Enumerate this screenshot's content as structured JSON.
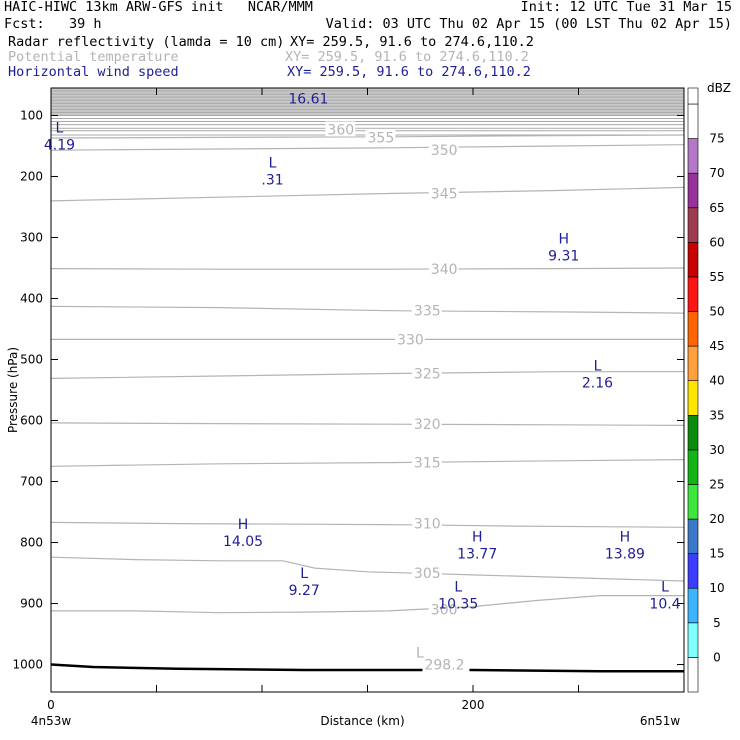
{
  "header": {
    "line1_left": "HAIC-HIWC 13km ARW-GFS init   NCAR/MMM",
    "line1_right": "Init: 12 UTC Tue 31 Mar 15",
    "line2_left": "Fcst:   39 h",
    "line2_right": "Valid: 03 UTC Thu 02 Apr 15 (00 LST Thu 02 Apr 15)",
    "line3_left": "Radar reflectivity (lamda = 10 cm)",
    "line3_right": "XY= 259.5, 91.6 to 274.6,110.2",
    "line4_left": "Potential temperature",
    "line4_right": "XY= 259.5, 91.6 to 274.6,110.2",
    "line5_left": "Horizontal wind speed",
    "line5_right": "XY= 259.5, 91.6 to 274.6,110.2"
  },
  "chart_data": {
    "type": "line",
    "xlabel": "Distance (km)",
    "ylabel": "Pressure (hPa)",
    "xlim": [
      0,
      300
    ],
    "ylim": [
      1045,
      55
    ],
    "x_ticks": [
      0,
      50,
      100,
      150,
      200,
      250,
      300
    ],
    "x_tick_labels": [
      "0",
      "",
      "",
      "",
      "200",
      "",
      ""
    ],
    "y_ticks": [
      100,
      200,
      300,
      400,
      500,
      600,
      700,
      800,
      900,
      1000
    ],
    "x_end_labels": {
      "left": "4n53w",
      "right": "6n51w"
    },
    "surface_pressure": {
      "x": [
        0,
        20,
        60,
        120,
        200,
        260,
        300
      ],
      "y": [
        1000,
        1004,
        1007,
        1009,
        1009,
        1011,
        1011
      ]
    },
    "potential_temperature_isentropes": [
      {
        "value": 298.2,
        "label": "298.2",
        "label_x": 177,
        "label_y": 1000,
        "marker": "L",
        "marker_x": 173,
        "marker_y": 980,
        "x": [],
        "y": []
      },
      {
        "value": 300,
        "label": "300",
        "label_x": 180,
        "label_y": 910,
        "x": [
          0,
          40,
          80,
          120,
          160,
          200,
          230,
          260,
          300
        ],
        "y": [
          912,
          912,
          915,
          914,
          912,
          905,
          895,
          887,
          887
        ]
      },
      {
        "value": 305,
        "label": "305",
        "label_x": 172,
        "label_y": 850,
        "x": [
          0,
          40,
          80,
          110,
          125,
          150,
          200,
          250,
          300
        ],
        "y": [
          824,
          828,
          830,
          830,
          842,
          848,
          853,
          858,
          863
        ]
      },
      {
        "value": 310,
        "label": "310",
        "label_x": 172,
        "label_y": 769,
        "x": [
          0,
          60,
          120,
          170,
          220,
          300
        ],
        "y": [
          767,
          769,
          770,
          771,
          773,
          775
        ]
      },
      {
        "value": 315,
        "label": "315",
        "label_x": 172,
        "label_y": 669,
        "x": [
          0,
          80,
          160,
          240,
          300
        ],
        "y": [
          675,
          671,
          669,
          666,
          664
        ]
      },
      {
        "value": 320,
        "label": "320",
        "label_x": 172,
        "label_y": 606,
        "x": [
          0,
          80,
          160,
          240,
          300
        ],
        "y": [
          604,
          605,
          606,
          607,
          608
        ]
      },
      {
        "value": 325,
        "label": "325",
        "label_x": 172,
        "label_y": 523,
        "x": [
          0,
          80,
          160,
          240,
          300
        ],
        "y": [
          531,
          527,
          523,
          520,
          520
        ]
      },
      {
        "value": 330,
        "label": "330",
        "label_x": 164,
        "label_y": 467,
        "x": [
          0,
          80,
          160,
          240,
          300
        ],
        "y": [
          467,
          467,
          467,
          467,
          467
        ]
      },
      {
        "value": 335,
        "label": "335",
        "label_x": 172,
        "label_y": 420,
        "x": [
          0,
          80,
          160,
          240,
          300
        ],
        "y": [
          413,
          415,
          420,
          422,
          424
        ]
      },
      {
        "value": 340,
        "label": "340",
        "label_x": 180,
        "label_y": 352,
        "x": [
          0,
          80,
          160,
          240,
          300
        ],
        "y": [
          351,
          352,
          352,
          351,
          350
        ]
      },
      {
        "value": 345,
        "label": "345",
        "label_x": 180,
        "label_y": 228,
        "x": [
          0,
          80,
          160,
          240,
          300
        ],
        "y": [
          240,
          234,
          228,
          223,
          218
        ]
      },
      {
        "value": 350,
        "label": "350",
        "label_x": 180,
        "label_y": 157,
        "x": [
          0,
          80,
          160,
          240,
          300
        ],
        "y": [
          157,
          155,
          153,
          150,
          148
        ]
      },
      {
        "value": 355,
        "label": "355",
        "label_x": 150,
        "label_y": 136,
        "x": [
          0,
          80,
          160,
          240,
          300
        ],
        "y": [
          137,
          136,
          135,
          133,
          132
        ]
      },
      {
        "value": 360,
        "label": "360",
        "label_x": 131,
        "label_y": 123,
        "x": [
          0,
          80,
          160,
          240,
          300
        ],
        "y": [
          121,
          121,
          121,
          121,
          121
        ]
      }
    ],
    "upper_gray_bands": [
      55,
      60,
      65,
      70,
      75,
      80,
      85,
      90,
      95,
      100,
      105,
      110,
      115,
      125,
      132
    ],
    "wind_speed_extrema": [
      {
        "type": "L",
        "value": "4.19",
        "x": 4,
        "y": 138
      },
      {
        "type": "L",
        "value": ".31",
        "x": 105,
        "y": 195
      },
      {
        "type": "H",
        "value": "9.31",
        "x": 243,
        "y": 320
      },
      {
        "type": "L",
        "value": "2.16",
        "x": 259,
        "y": 528
      },
      {
        "type": "H",
        "value": "14.05",
        "x": 91,
        "y": 788
      },
      {
        "type": "H",
        "value": "13.77",
        "x": 202,
        "y": 808
      },
      {
        "type": "H",
        "value": "13.89",
        "x": 272,
        "y": 808
      },
      {
        "type": "L",
        "value": "9.27",
        "x": 120,
        "y": 868
      },
      {
        "type": "L",
        "value": "10.35",
        "x": 193,
        "y": 890
      },
      {
        "type": "L",
        "value": "10.4",
        "x": 291,
        "y": 890
      },
      {
        "type": "",
        "value": "16.61",
        "x": 122,
        "y": 72
      }
    ]
  },
  "colorbar": {
    "title": "dBZ",
    "levels": [
      0,
      5,
      10,
      15,
      20,
      25,
      30,
      35,
      40,
      45,
      50,
      55,
      60,
      65,
      70,
      75
    ],
    "colors": [
      "#ffffff",
      "#80ffff",
      "#3cb4ff",
      "#3c3cff",
      "#3c78c8",
      "#3ce63c",
      "#14b414",
      "#0a8c0a",
      "#ffe600",
      "#ffa03c",
      "#ff6400",
      "#ff1414",
      "#c80000",
      "#a03c50",
      "#96329a",
      "#b478c8",
      "#ffffff"
    ]
  }
}
